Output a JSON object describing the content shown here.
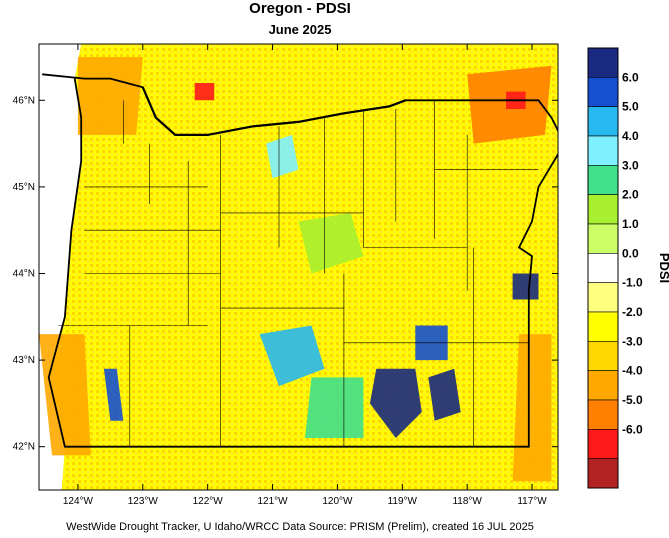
{
  "title": "Oregon - PDSI",
  "subtitle": "June 2025",
  "footer": "WestWide Drought Tracker, U Idaho/WRCC Data Source: PRISM (Prelim), created 16 JUL 2025",
  "map": {
    "lon_range": [
      -124.6,
      -116.6
    ],
    "lat_range": [
      41.5,
      46.65
    ],
    "lon_ticks": [
      {
        "value": -124,
        "label": "124°W"
      },
      {
        "value": -123,
        "label": "123°W"
      },
      {
        "value": -122,
        "label": "122°W"
      },
      {
        "value": -121,
        "label": "121°W"
      },
      {
        "value": -120,
        "label": "120°W"
      },
      {
        "value": -119,
        "label": "119°W"
      },
      {
        "value": -118,
        "label": "118°W"
      },
      {
        "value": -117,
        "label": "117°W"
      }
    ],
    "lat_ticks": [
      {
        "value": 46,
        "label": "46°N"
      },
      {
        "value": 45,
        "label": "45°N"
      },
      {
        "value": 44,
        "label": "44°N"
      },
      {
        "value": 43,
        "label": "43°N"
      },
      {
        "value": 42,
        "label": "42°N"
      }
    ],
    "regions": [
      {
        "name": "wet-southeast-basin",
        "color": "#1a2a80",
        "polygon": [
          [
            -119.4,
            42.9
          ],
          [
            -118.8,
            42.9
          ],
          [
            -118.7,
            42.4
          ],
          [
            -119.1,
            42.1
          ],
          [
            -119.5,
            42.5
          ]
        ]
      },
      {
        "name": "wet-hart-mountain",
        "color": "#1a2a80",
        "polygon": [
          [
            -118.6,
            42.8
          ],
          [
            -118.2,
            42.9
          ],
          [
            -118.1,
            42.4
          ],
          [
            -118.5,
            42.3
          ]
        ]
      },
      {
        "name": "wet-steens",
        "color": "#1550d0",
        "polygon": [
          [
            -118.8,
            43.4
          ],
          [
            -118.3,
            43.4
          ],
          [
            -118.3,
            43.0
          ],
          [
            -118.8,
            43.0
          ]
        ]
      },
      {
        "name": "wet-klamath",
        "color": "#1550d0",
        "polygon": [
          [
            -123.6,
            42.9
          ],
          [
            -123.4,
            42.9
          ],
          [
            -123.3,
            42.3
          ],
          [
            -123.5,
            42.3
          ]
        ]
      },
      {
        "name": "wet-wallowa",
        "color": "#1a2a80",
        "polygon": [
          [
            -117.3,
            44.0
          ],
          [
            -116.9,
            44.0
          ],
          [
            -116.9,
            43.7
          ],
          [
            -117.3,
            43.7
          ]
        ]
      },
      {
        "name": "moist-central",
        "color": "#28b8f0",
        "polygon": [
          [
            -121.2,
            43.3
          ],
          [
            -120.4,
            43.4
          ],
          [
            -120.2,
            42.9
          ],
          [
            -120.9,
            42.7
          ]
        ]
      },
      {
        "name": "moist-northcentral",
        "color": "#7ff0ff",
        "polygon": [
          [
            -121.1,
            45.5
          ],
          [
            -120.7,
            45.6
          ],
          [
            -120.6,
            45.2
          ],
          [
            -121.0,
            45.1
          ]
        ]
      },
      {
        "name": "green-central",
        "color": "#a8f030",
        "polygon": [
          [
            -120.6,
            44.6
          ],
          [
            -119.8,
            44.7
          ],
          [
            -119.6,
            44.2
          ],
          [
            -120.4,
            44.0
          ]
        ]
      },
      {
        "name": "green-south",
        "color": "#40e08c",
        "polygon": [
          [
            -120.4,
            42.8
          ],
          [
            -119.6,
            42.8
          ],
          [
            -119.6,
            42.1
          ],
          [
            -120.5,
            42.1
          ]
        ]
      },
      {
        "name": "dry-northeast",
        "color": "#ff8000",
        "polygon": [
          [
            -118.0,
            46.3
          ],
          [
            -116.7,
            46.4
          ],
          [
            -116.8,
            45.6
          ],
          [
            -117.9,
            45.5
          ]
        ]
      },
      {
        "name": "dry-northwest",
        "color": "#ffa800",
        "polygon": [
          [
            -124.0,
            46.5
          ],
          [
            -123.0,
            46.5
          ],
          [
            -123.1,
            45.6
          ],
          [
            -124.0,
            45.6
          ]
        ]
      },
      {
        "name": "dry-southwest",
        "color": "#ffa800",
        "polygon": [
          [
            -124.6,
            43.3
          ],
          [
            -123.9,
            43.3
          ],
          [
            -123.8,
            41.9
          ],
          [
            -124.4,
            41.9
          ]
        ]
      },
      {
        "name": "dry-southeast-corner",
        "color": "#ffa800",
        "polygon": [
          [
            -117.2,
            43.3
          ],
          [
            -116.7,
            43.3
          ],
          [
            -116.7,
            41.6
          ],
          [
            -117.3,
            41.6
          ]
        ]
      },
      {
        "name": "very-dry-ne-spot",
        "color": "#ff1a1a",
        "polygon": [
          [
            -117.4,
            46.1
          ],
          [
            -117.1,
            46.1
          ],
          [
            -117.1,
            45.9
          ],
          [
            -117.4,
            45.9
          ]
        ]
      },
      {
        "name": "very-dry-nw-spot",
        "color": "#ff1a1a",
        "polygon": [
          [
            -122.2,
            46.2
          ],
          [
            -121.9,
            46.2
          ],
          [
            -121.9,
            46.0
          ],
          [
            -122.2,
            46.0
          ]
        ]
      }
    ],
    "state_border": [
      [
        -124.55,
        46.3
      ],
      [
        -123.9,
        46.25
      ],
      [
        -123.5,
        46.25
      ],
      [
        -123.0,
        46.15
      ],
      [
        -122.8,
        45.8
      ],
      [
        -122.5,
        45.6
      ],
      [
        -122.0,
        45.6
      ],
      [
        -121.3,
        45.7
      ],
      [
        -120.6,
        45.75
      ],
      [
        -119.9,
        45.85
      ],
      [
        -119.2,
        45.93
      ],
      [
        -118.95,
        46.0
      ],
      [
        -116.9,
        46.0
      ],
      [
        -116.7,
        45.8
      ],
      [
        -116.5,
        45.5
      ],
      [
        -116.9,
        45.0
      ],
      [
        -117.0,
        44.6
      ],
      [
        -117.2,
        44.3
      ],
      [
        -117.0,
        44.2
      ],
      [
        -117.05,
        43.8
      ],
      [
        -117.05,
        43.0
      ],
      [
        -117.05,
        42.0
      ],
      [
        -119.0,
        42.0
      ],
      [
        -121.0,
        42.0
      ],
      [
        -122.5,
        42.0
      ],
      [
        -124.2,
        42.0
      ],
      [
        -124.45,
        42.8
      ],
      [
        -124.2,
        43.5
      ],
      [
        -124.1,
        44.5
      ],
      [
        -123.95,
        45.3
      ],
      [
        -123.95,
        45.8
      ],
      [
        -124.05,
        46.25
      ]
    ],
    "river_border": [
      [
        -123.0,
        46.15
      ],
      [
        -122.8,
        45.8
      ],
      [
        -122.5,
        45.6
      ],
      [
        -122.0,
        45.6
      ],
      [
        -121.3,
        45.7
      ],
      [
        -120.6,
        45.75
      ],
      [
        -119.9,
        45.85
      ],
      [
        -119.2,
        45.93
      ],
      [
        -118.95,
        46.0
      ]
    ],
    "county_lines": [
      [
        [
          -123.3,
          46.0
        ],
        [
          -123.3,
          45.5
        ]
      ],
      [
        [
          -122.9,
          45.5
        ],
        [
          -122.9,
          44.8
        ]
      ],
      [
        [
          -123.9,
          45.0
        ],
        [
          -122.0,
          45.0
        ]
      ],
      [
        [
          -123.9,
          44.5
        ],
        [
          -121.8,
          44.5
        ]
      ],
      [
        [
          -123.9,
          44.0
        ],
        [
          -121.8,
          44.0
        ]
      ],
      [
        [
          -124.3,
          43.4
        ],
        [
          -122.0,
          43.4
        ]
      ],
      [
        [
          -123.2,
          43.4
        ],
        [
          -123.2,
          42.0
        ]
      ],
      [
        [
          -122.3,
          45.3
        ],
        [
          -122.3,
          43.4
        ]
      ],
      [
        [
          -121.8,
          45.6
        ],
        [
          -121.8,
          42.0
        ]
      ],
      [
        [
          -121.8,
          44.7
        ],
        [
          -119.6,
          44.7
        ]
      ],
      [
        [
          -120.9,
          45.7
        ],
        [
          -120.9,
          44.3
        ]
      ],
      [
        [
          -121.8,
          43.6
        ],
        [
          -119.9,
          43.6
        ]
      ],
      [
        [
          -120.2,
          45.8
        ],
        [
          -120.2,
          44.0
        ]
      ],
      [
        [
          -119.9,
          44.0
        ],
        [
          -119.9,
          42.0
        ]
      ],
      [
        [
          -119.6,
          45.9
        ],
        [
          -119.6,
          44.3
        ]
      ],
      [
        [
          -119.6,
          44.3
        ],
        [
          -118.0,
          44.3
        ]
      ],
      [
        [
          -119.1,
          45.9
        ],
        [
          -119.1,
          44.6
        ]
      ],
      [
        [
          -118.5,
          46.0
        ],
        [
          -118.5,
          44.4
        ]
      ],
      [
        [
          -118.0,
          45.6
        ],
        [
          -118.0,
          43.8
        ]
      ],
      [
        [
          -118.5,
          45.2
        ],
        [
          -116.9,
          45.2
        ]
      ],
      [
        [
          -117.9,
          44.3
        ],
        [
          -117.9,
          42.0
        ]
      ],
      [
        [
          -119.9,
          43.2
        ],
        [
          -117.05,
          43.2
        ]
      ]
    ]
  },
  "colorbar": {
    "title": "PDSI",
    "colors": [
      "#1a2a80",
      "#1550d0",
      "#28b8f0",
      "#7ff0ff",
      "#40e08c",
      "#a8f030",
      "#ccff66",
      "#ffffff",
      "#ffff80",
      "#ffff00",
      "#ffd700",
      "#ffa800",
      "#ff8000",
      "#ff1a1a",
      "#b22222"
    ],
    "labels": [
      "6.0",
      "5.0",
      "4.0",
      "3.0",
      "2.0",
      "1.0",
      "0.0",
      "-1.0",
      "-2.0",
      "-3.0",
      "-4.0",
      "-5.0",
      "-6.0"
    ]
  }
}
